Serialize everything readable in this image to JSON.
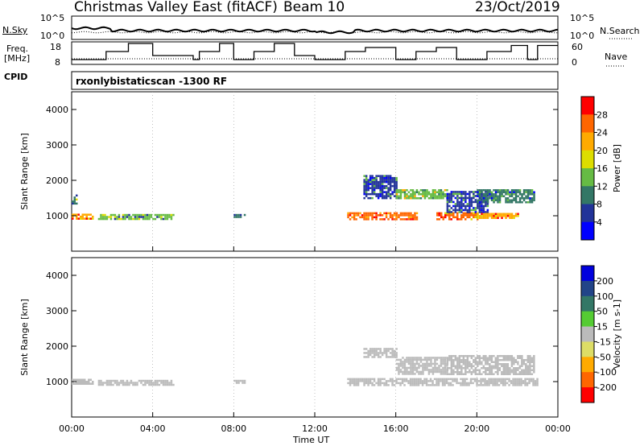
{
  "header": {
    "station": "Christmas Valley East (fitACF)",
    "beam": "Beam 10",
    "date": "23/Oct/2019"
  },
  "summary": {
    "nsky_label": "N.Sky",
    "nsearch_label": "N.Search",
    "nsky_ticks": [
      "10^5",
      "10^0"
    ],
    "nsearch_ticks": [
      "10^5",
      "10^0"
    ],
    "freq_label_line1": "Freq.",
    "freq_label_line2": "[MHz]",
    "freq_ticks": [
      "18",
      "8"
    ],
    "nave_label": "Nave",
    "nave_ticks": [
      "60",
      "0"
    ],
    "cpid_label": "CPID",
    "cpid_text": "rxonlybistaticscan -1300 RF"
  },
  "axes": {
    "xlabel": "Time UT",
    "x_ticks": [
      "00:00",
      "04:00",
      "08:00",
      "12:00",
      "16:00",
      "20:00",
      "00:00"
    ],
    "ylabel": "Slant Range [km]",
    "y_ticks": [
      "4000",
      "3000",
      "2000",
      "1000"
    ]
  },
  "power_scale": {
    "label": "Power [dB]",
    "ticks": [
      "28",
      "24",
      "20",
      "16",
      "12",
      "8",
      "4"
    ],
    "colors": [
      "#ff0000",
      "#ff6600",
      "#ffaa00",
      "#dddd00",
      "#66bb44",
      "#337766",
      "#223399",
      "#0000ff"
    ]
  },
  "velocity_scale": {
    "label": "Velocity [m s-1]",
    "ticks": [
      "200",
      "100",
      "50",
      "15",
      "-15",
      "-50",
      "-100",
      "-200"
    ],
    "colors": [
      "#0000dd",
      "#224488",
      "#337766",
      "#55cc33",
      "#bbbbbb",
      "#dddd66",
      "#ffaa00",
      "#ff6600",
      "#ff0000"
    ]
  },
  "chart_data": [
    {
      "type": "heatmap",
      "title": "Power",
      "xlabel": "Time UT",
      "ylabel": "Slant Range [km]",
      "xlim_hours": [
        0,
        24
      ],
      "ylim_km": [
        0,
        4500
      ],
      "colorbar_label": "Power [dB]",
      "colorbar_range": [
        0,
        32
      ],
      "regions": [
        {
          "t_start": 0.0,
          "t_end": 1.0,
          "r_start": 920,
          "r_end": 1060,
          "value": 24
        },
        {
          "t_start": 0.0,
          "t_end": 0.2,
          "r_start": 1350,
          "r_end": 1600,
          "value": 12
        },
        {
          "t_start": 1.3,
          "t_end": 5.0,
          "r_start": 930,
          "r_end": 1050,
          "value": 14
        },
        {
          "t_start": 8.0,
          "t_end": 8.5,
          "r_start": 950,
          "r_end": 1050,
          "value": 12
        },
        {
          "t_start": 13.6,
          "t_end": 16.0,
          "r_start": 900,
          "r_end": 1100,
          "value": 28
        },
        {
          "t_start": 14.4,
          "t_end": 16.0,
          "r_start": 1500,
          "r_end": 2150,
          "value": 8
        },
        {
          "t_start": 16.0,
          "t_end": 18.5,
          "r_start": 1500,
          "r_end": 1750,
          "value": 16
        },
        {
          "t_start": 16.0,
          "t_end": 17.0,
          "r_start": 900,
          "r_end": 1100,
          "value": 28
        },
        {
          "t_start": 18.0,
          "t_end": 20.0,
          "r_start": 900,
          "r_end": 1100,
          "value": 26
        },
        {
          "t_start": 18.5,
          "t_end": 20.5,
          "r_start": 1100,
          "r_end": 1700,
          "value": 8
        },
        {
          "t_start": 20.0,
          "t_end": 22.8,
          "r_start": 1400,
          "r_end": 1750,
          "value": 10
        },
        {
          "t_start": 20.0,
          "t_end": 22.0,
          "r_start": 920,
          "r_end": 1080,
          "value": 24
        }
      ]
    },
    {
      "type": "heatmap",
      "title": "Velocity",
      "xlabel": "Time UT",
      "ylabel": "Slant Range [km]",
      "xlim_hours": [
        0,
        24
      ],
      "ylim_km": [
        0,
        4500
      ],
      "colorbar_label": "Velocity [m s-1]",
      "colorbar_range": [
        -200,
        200
      ],
      "regions": [
        {
          "t_start": 0.0,
          "t_end": 1.0,
          "r_start": 920,
          "r_end": 1080,
          "value": 0
        },
        {
          "t_start": 1.3,
          "t_end": 5.0,
          "r_start": 930,
          "r_end": 1050,
          "value": 0
        },
        {
          "t_start": 8.0,
          "t_end": 8.5,
          "r_start": 950,
          "r_end": 1050,
          "value": 0
        },
        {
          "t_start": 13.6,
          "t_end": 23.0,
          "r_start": 900,
          "r_end": 1100,
          "value": 0
        },
        {
          "t_start": 14.4,
          "t_end": 16.0,
          "r_start": 1700,
          "r_end": 1950,
          "value": 0
        },
        {
          "t_start": 16.0,
          "t_end": 18.5,
          "r_start": 1200,
          "r_end": 1700,
          "value": 0
        },
        {
          "t_start": 18.5,
          "t_end": 22.8,
          "r_start": 1200,
          "r_end": 1750,
          "value": 0
        }
      ]
    }
  ]
}
